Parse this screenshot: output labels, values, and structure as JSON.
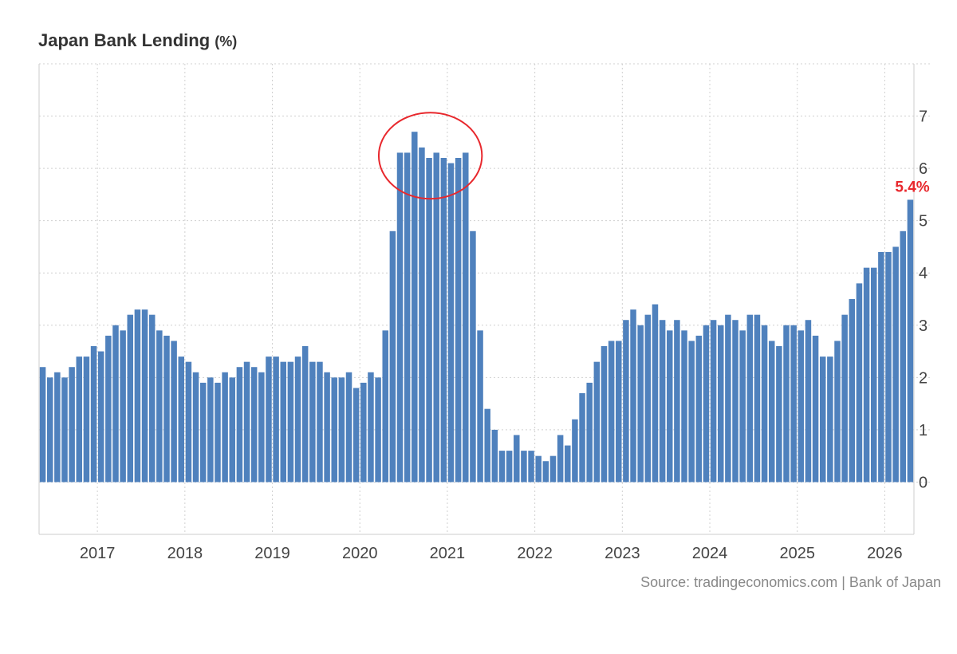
{
  "title": "Japan Bank Lending",
  "title_unit": "(%)",
  "source": "Source: tradingeconomics.com | Bank of Japan",
  "last_label": "5.4%",
  "colors": {
    "bar": "#4f81bd",
    "highlight": "#e8282d",
    "grid": "#d0d0d0",
    "axis_text": "#444444",
    "last_label": "#e8282d"
  },
  "annotation": {
    "shape": "ellipse",
    "covers": [
      "2020-06",
      "2021-03"
    ]
  },
  "chart_data": {
    "type": "bar",
    "title": "Japan Bank Lending",
    "unit": "%",
    "ylim": [
      -1,
      8
    ],
    "yticks": [
      0,
      1,
      2,
      3,
      4,
      5,
      6,
      7
    ],
    "xtick_labels": [
      "2017",
      "2018",
      "2019",
      "2020",
      "2021",
      "2022",
      "2023",
      "2024",
      "2025",
      "2026"
    ],
    "grid": true,
    "series": [
      {
        "start": "2016-05",
        "frequency": "monthly",
        "values": [
          2.2,
          2.0,
          2.1,
          2.0,
          2.2,
          2.4,
          2.4,
          2.6,
          2.5,
          2.8,
          3.0,
          2.9,
          3.2,
          3.3,
          3.3,
          3.2,
          2.9,
          2.8,
          2.7,
          2.4,
          2.3,
          2.1,
          1.9,
          2.0,
          1.9,
          2.1,
          2.0,
          2.2,
          2.3,
          2.2,
          2.1,
          2.4,
          2.4,
          2.3,
          2.3,
          2.4,
          2.6,
          2.3,
          2.3,
          2.1,
          2.0,
          2.0,
          2.1,
          1.8,
          1.9,
          2.1,
          2.0,
          2.9,
          4.8,
          6.3,
          6.3,
          6.7,
          6.4,
          6.2,
          6.3,
          6.2,
          6.1,
          6.2,
          6.3,
          4.8,
          2.9,
          1.4,
          1.0,
          0.6,
          0.6,
          0.9,
          0.6,
          0.6,
          0.5,
          0.4,
          0.5,
          0.9,
          0.7,
          1.2,
          1.7,
          1.9,
          2.3,
          2.6,
          2.7,
          2.7,
          3.1,
          3.3,
          3.0,
          3.2,
          3.4,
          3.1,
          2.9,
          3.1,
          2.9,
          2.7,
          2.8,
          3.0,
          3.1,
          3.0,
          3.2,
          3.1,
          2.9,
          3.2,
          3.2,
          3.0,
          2.7,
          2.6,
          3.0,
          3.0,
          2.9,
          3.1,
          2.8,
          2.4,
          2.4,
          2.7,
          3.2,
          3.5,
          3.8,
          4.1,
          4.1,
          4.4,
          4.4,
          4.5,
          4.8,
          5.4
        ]
      }
    ]
  }
}
